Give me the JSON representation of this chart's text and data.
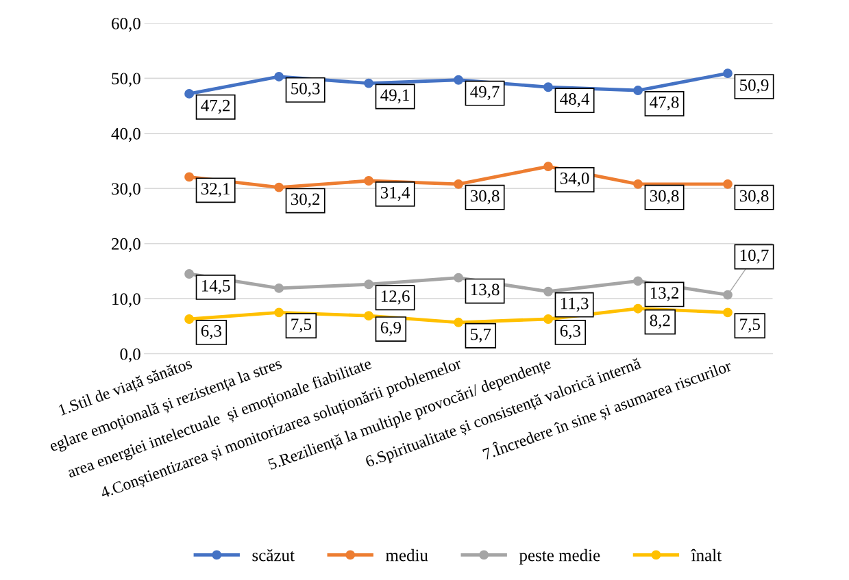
{
  "chart_data": {
    "type": "line",
    "categories": [
      "1.Stil de viață sănătos",
      "eglare emoțională și rezistența la stres",
      "area energiei intelectuale  și emoționale fiabilitate",
      "4.Conștientizarea și monitorizarea soluționării problemelor",
      "5.Reziliență la multiple provocări/ dependențe",
      "6.Spiritualitate și consistență valorică internă",
      "7.Încredere în sine și asumarea riscurilor"
    ],
    "series": [
      {
        "name": "scăzut",
        "color": "#4472c4",
        "values": [
          47.2,
          50.3,
          49.1,
          49.7,
          48.4,
          47.8,
          50.9
        ],
        "value_labels": [
          "47,2",
          "50,3",
          "49,1",
          "49,7",
          "48,4",
          "47,8",
          "50,9"
        ]
      },
      {
        "name": "mediu",
        "color": "#ed7d31",
        "values": [
          32.1,
          30.2,
          31.4,
          30.8,
          34.0,
          30.8,
          30.8
        ],
        "value_labels": [
          "32,1",
          "30,2",
          "31,4",
          "30,8",
          "34,0",
          "30,8",
          "30,8"
        ]
      },
      {
        "name": "peste medie",
        "color": "#a5a5a5",
        "values": [
          14.5,
          11.9,
          12.6,
          13.8,
          11.3,
          13.2,
          10.7
        ],
        "value_labels": [
          "14,5",
          null,
          "12,6",
          "13,8",
          "11,3",
          "13,2",
          "10,7"
        ]
      },
      {
        "name": "înalt",
        "color": "#ffc000",
        "values": [
          6.3,
          7.5,
          6.9,
          5.7,
          6.3,
          8.2,
          7.5
        ],
        "value_labels": [
          "6,3",
          "7,5",
          "6,9",
          "5,7",
          "6,3",
          "8,2",
          "7,5"
        ]
      }
    ],
    "ylim": [
      0,
      60
    ],
    "yticks": [
      {
        "value": 0,
        "label": "0,0"
      },
      {
        "value": 10,
        "label": "10,0"
      },
      {
        "value": 20,
        "label": "20,0"
      },
      {
        "value": 30,
        "label": "30,0"
      },
      {
        "value": 40,
        "label": "40,0"
      },
      {
        "value": 50,
        "label": "50,0"
      },
      {
        "value": 60,
        "label": "60,0"
      }
    ],
    "grid": "y",
    "legend": "bottom",
    "marker": "circle",
    "line_style": "solid"
  }
}
